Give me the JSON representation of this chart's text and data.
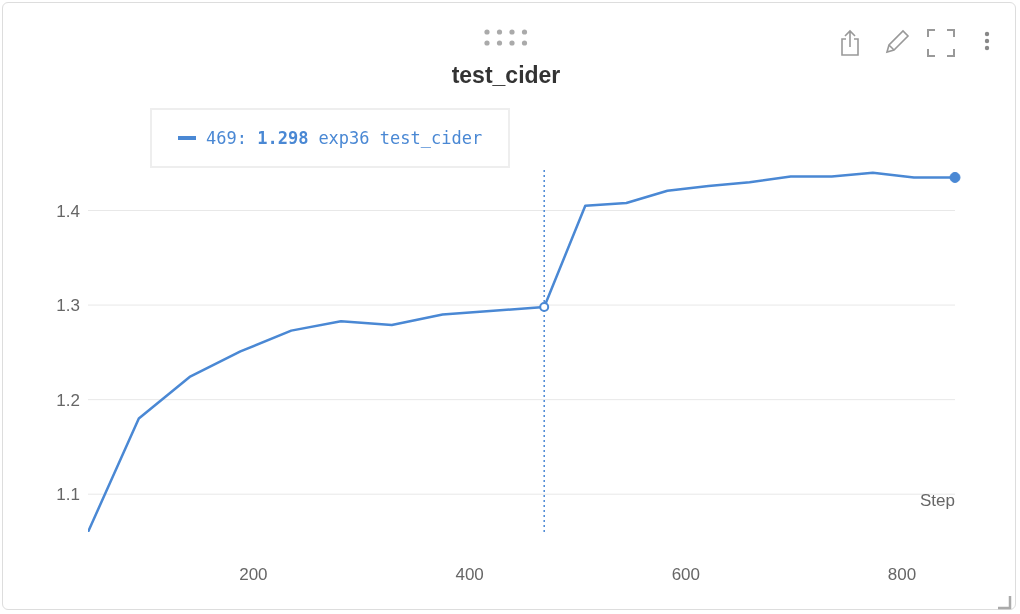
{
  "chart_data": {
    "type": "line",
    "title": "test_cider",
    "xlabel": "Step",
    "x": [
      47,
      94,
      141,
      188,
      235,
      281,
      328,
      375,
      422,
      469,
      507,
      545,
      583,
      621,
      659,
      697,
      735,
      773,
      811,
      849
    ],
    "series": [
      {
        "name": "exp36 test_cider",
        "color": "#4a88d4",
        "values": [
          1.06,
          1.18,
          1.224,
          1.251,
          1.273,
          1.283,
          1.279,
          1.29,
          1.294,
          1.298,
          1.405,
          1.408,
          1.421,
          1.426,
          1.43,
          1.436,
          1.436,
          1.44,
          1.435,
          1.435
        ]
      }
    ],
    "xlim": [
      47,
      849
    ],
    "xticks": [
      200,
      400,
      600,
      800
    ],
    "ylim": [
      1.06,
      1.445
    ],
    "yticks": [
      1.1,
      1.2,
      1.3,
      1.4
    ],
    "grid": "y",
    "legend": "top left",
    "line_style": "solid",
    "annotations": [
      "469: 1.298"
    ],
    "ref_lines": [
      {
        "axis": "x",
        "value": 469,
        "color": "#4a88d4",
        "line_style": "dotted"
      }
    ]
  }
}
